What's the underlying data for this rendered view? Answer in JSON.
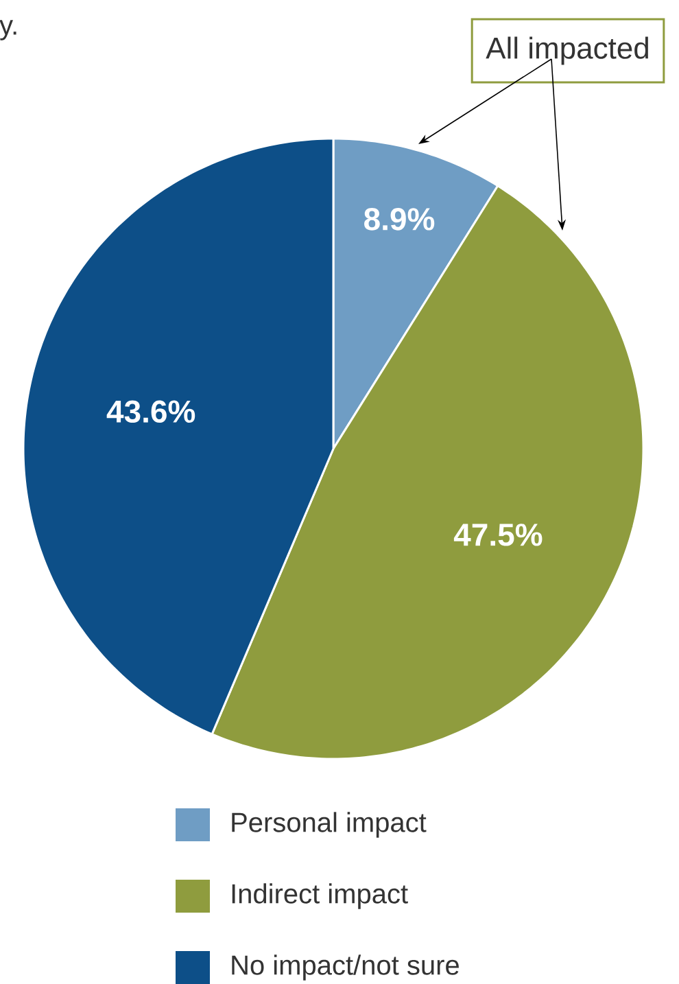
{
  "chart_data": {
    "type": "pie",
    "categories": [
      "Personal impact",
      "Indirect impact",
      "No impact/not sure"
    ],
    "values": [
      8.9,
      47.5,
      43.6
    ],
    "colors": [
      "#6f9dc4",
      "#8f9c3e",
      "#0d4f88"
    ],
    "value_labels": [
      "8.9%",
      "47.5%",
      "43.6%"
    ],
    "legend": "bottom",
    "annotations": [
      "y.",
      "All impacted"
    ]
  }
}
